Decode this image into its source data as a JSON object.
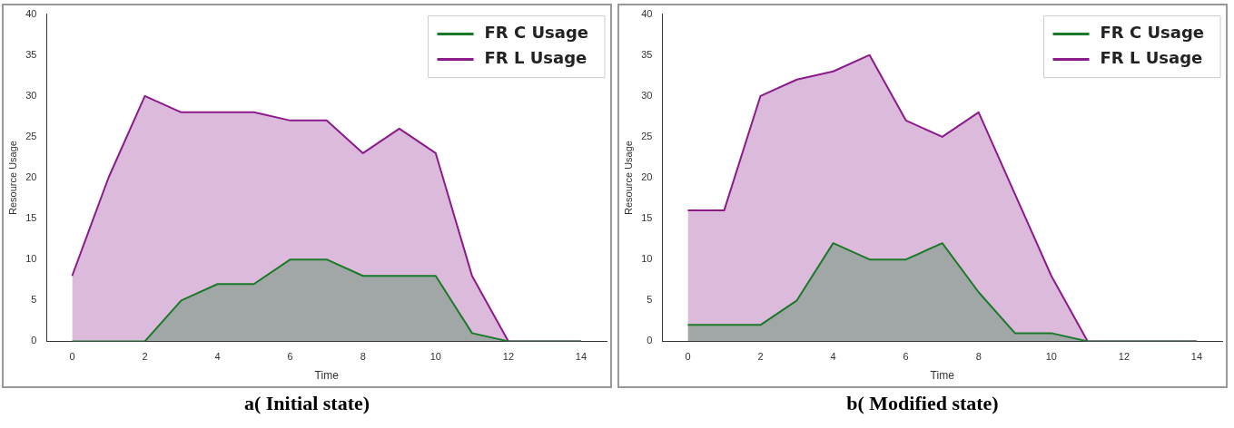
{
  "chart_data": [
    {
      "type": "area",
      "xlabel": "Time",
      "ylabel": "Resource Usage",
      "annotations": [
        "a( Initial state)"
      ],
      "x": [
        0,
        1,
        2,
        3,
        4,
        5,
        6,
        7,
        8,
        9,
        10,
        11,
        12,
        13,
        14
      ],
      "series": [
        {
          "name": "FR C Usage",
          "color": "#1a7a2a",
          "values": [
            0,
            0,
            0,
            5,
            7,
            7,
            10,
            10,
            8,
            8,
            8,
            1,
            0,
            0,
            0
          ]
        },
        {
          "name": "FR L Usage",
          "color": "#8b1a8b",
          "values": [
            8,
            20,
            30,
            28,
            28,
            28,
            27,
            27,
            23,
            26,
            23,
            8,
            0,
            0,
            0
          ]
        }
      ],
      "xlim": [
        -0.7,
        14.7
      ],
      "xticks": [
        0,
        2,
        4,
        6,
        8,
        10,
        12,
        14
      ],
      "ylim": [
        0,
        40
      ],
      "yticks": [
        0,
        5,
        10,
        15,
        20,
        25,
        30,
        35,
        40
      ],
      "grid": false,
      "legend": "top right"
    },
    {
      "type": "area",
      "xlabel": "Time",
      "ylabel": "Resource Usage",
      "annotations": [
        "b( Modified state)"
      ],
      "x": [
        0,
        1,
        2,
        3,
        4,
        5,
        6,
        7,
        8,
        9,
        10,
        11,
        12,
        13,
        14
      ],
      "series": [
        {
          "name": "FR C Usage",
          "color": "#1a7a2a",
          "values": [
            2,
            2,
            2,
            5,
            12,
            10,
            10,
            12,
            6,
            1,
            1,
            0,
            0,
            0,
            0
          ]
        },
        {
          "name": "FR L Usage",
          "color": "#8b1a8b",
          "values": [
            16,
            16,
            30,
            32,
            33,
            35,
            27,
            25,
            28,
            18,
            8,
            0,
            0,
            0,
            0
          ]
        }
      ],
      "xlim": [
        -0.7,
        14.7
      ],
      "xticks": [
        0,
        2,
        4,
        6,
        8,
        10,
        12,
        14
      ],
      "ylim": [
        0,
        40
      ],
      "yticks": [
        0,
        5,
        10,
        15,
        20,
        25,
        30,
        35,
        40
      ],
      "grid": false,
      "legend": "top right"
    }
  ]
}
